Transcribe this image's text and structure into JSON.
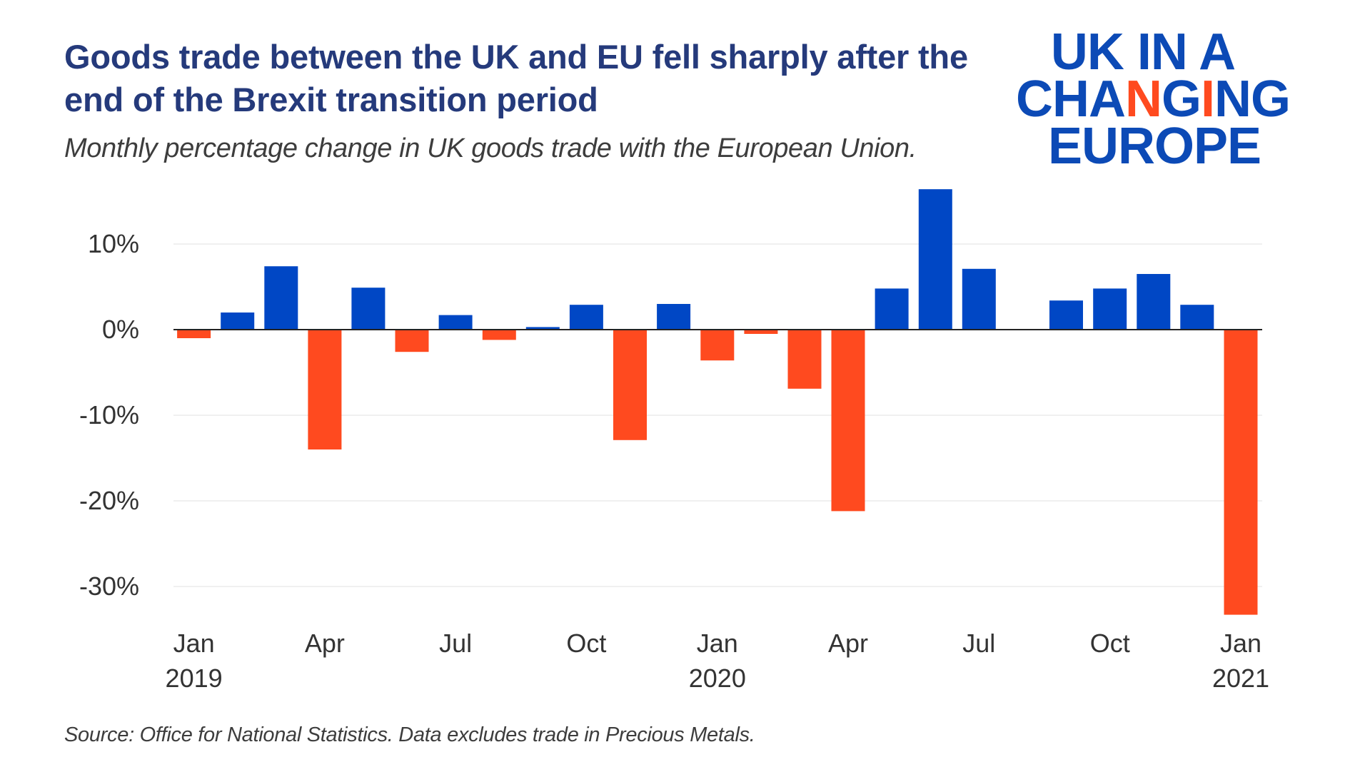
{
  "header": {
    "title": "Goods trade between the UK and EU fell sharply after the end of the Brexit transition period",
    "subtitle": "Monthly percentage change in UK goods trade with the European Union."
  },
  "logo": {
    "line1": "UK IN A",
    "line2_part1": "CHA",
    "line2_accent1": "N",
    "line2_part2": "G",
    "line2_accent2": "I",
    "line2_part3": "NG",
    "line3": "EUROPE"
  },
  "footer": {
    "source": "Source: Office for National Statistics. Data excludes trade in Precious Metals."
  },
  "colors": {
    "positive": "#0047c5",
    "negative": "#ff4a1f",
    "grid": "#ebebeb",
    "axis": "#222222"
  },
  "chart_data": {
    "type": "bar",
    "title": "Goods trade between the UK and EU fell sharply after the end of the Brexit transition period",
    "subtitle": "Monthly percentage change in UK goods trade with the European Union.",
    "xlabel": "",
    "ylabel": "",
    "ylim": [
      -34,
      17
    ],
    "yticks": [
      10,
      0,
      -10,
      -20,
      -30
    ],
    "ytick_labels": [
      "10%",
      "0%",
      "-10%",
      "-20%",
      "-30%"
    ],
    "grid": true,
    "categories": [
      "Jan 2019",
      "Feb 2019",
      "Mar 2019",
      "Apr 2019",
      "May 2019",
      "Jun 2019",
      "Jul 2019",
      "Aug 2019",
      "Sep 2019",
      "Oct 2019",
      "Nov 2019",
      "Dec 2019",
      "Jan 2020",
      "Feb 2020",
      "Mar 2020",
      "Apr 2020",
      "May 2020",
      "Jun 2020",
      "Jul 2020",
      "Aug 2020",
      "Sep 2020",
      "Oct 2020",
      "Nov 2020",
      "Dec 2020",
      "Jan 2021"
    ],
    "values": [
      -1.0,
      2.0,
      7.4,
      -14.0,
      4.9,
      -2.6,
      1.7,
      -1.2,
      0.3,
      2.9,
      -12.9,
      3.0,
      -3.6,
      -0.5,
      -6.9,
      -21.2,
      4.8,
      16.4,
      7.1,
      0.0,
      3.4,
      4.8,
      6.5,
      2.9,
      -33.3
    ],
    "xtick_labels": [
      {
        "index": 0,
        "month": "Jan",
        "year": "2019"
      },
      {
        "index": 3,
        "month": "Apr",
        "year": ""
      },
      {
        "index": 6,
        "month": "Jul",
        "year": ""
      },
      {
        "index": 9,
        "month": "Oct",
        "year": ""
      },
      {
        "index": 12,
        "month": "Jan",
        "year": "2020"
      },
      {
        "index": 15,
        "month": "Apr",
        "year": ""
      },
      {
        "index": 18,
        "month": "Jul",
        "year": ""
      },
      {
        "index": 21,
        "month": "Oct",
        "year": ""
      },
      {
        "index": 24,
        "month": "Jan",
        "year": "2021"
      }
    ],
    "legend": "none"
  }
}
